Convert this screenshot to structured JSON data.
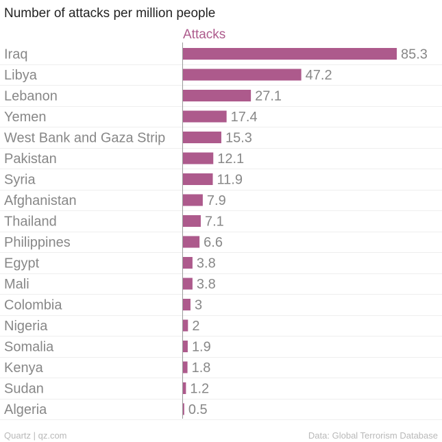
{
  "chart_data": {
    "type": "bar",
    "orientation": "horizontal",
    "title": "Number of attacks per million people",
    "categories": [
      "Iraq",
      "Libya",
      "Lebanon",
      "Yemen",
      "West Bank and Gaza Strip",
      "Pakistan",
      "Syria",
      "Afghanistan",
      "Thailand",
      "Philippines",
      "Egypt",
      "Mali",
      "Colombia",
      "Nigeria",
      "Somalia",
      "Kenya",
      "Sudan",
      "Algeria"
    ],
    "series": [
      {
        "name": "Attacks",
        "color": "#ad5a8c",
        "values": [
          85.3,
          47.2,
          27.1,
          17.4,
          15.3,
          12.1,
          11.9,
          7.9,
          7.1,
          6.6,
          3.8,
          3.8,
          3,
          2,
          1.9,
          1.8,
          1.2,
          0.5
        ]
      }
    ],
    "value_labels": [
      "85.3",
      "47.2",
      "27.1",
      "17.4",
      "15.3",
      "12.1",
      "11.9",
      "7.9",
      "7.1",
      "6.6",
      "3.8",
      "3.8",
      "3",
      "2",
      "1.9",
      "1.8",
      "1.2",
      "0.5"
    ],
    "xlim": [
      0,
      85.3
    ],
    "grid": true,
    "legend": "top"
  },
  "footer": {
    "source_left": "Quartz | qz.com",
    "source_right": "Data: Global Terrorism Database"
  }
}
